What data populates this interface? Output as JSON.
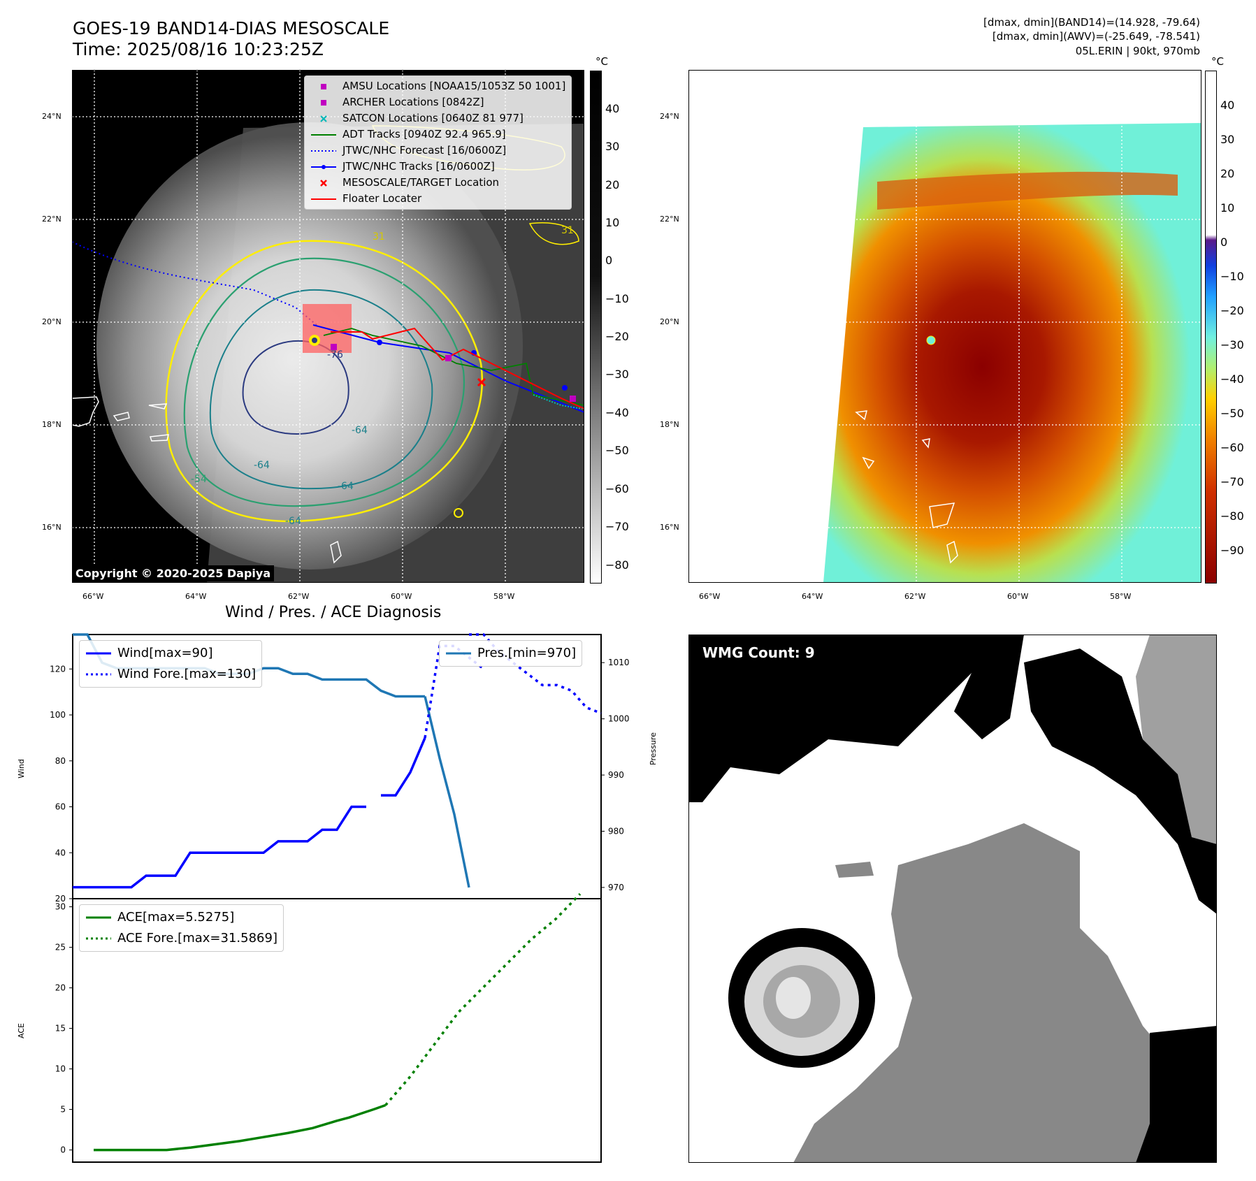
{
  "header": {
    "title_line1": "GOES-19 BAND14-DIAS MESOSCALE",
    "title_line2": "Time: 2025/08/16 10:23:25Z",
    "info_line1": "[dmax, dmin](BAND14)=(14.928, -79.64)",
    "info_line2": "[dmax, dmin](AWV)=(-25.649, -78.541)",
    "info_line3": "05L.ERIN | 90kt, 970mb"
  },
  "ir_panel": {
    "lat_ticks": [
      "24°N",
      "22°N",
      "20°N",
      "18°N",
      "16°N"
    ],
    "lon_ticks": [
      "66°W",
      "64°W",
      "62°W",
      "60°W",
      "58°W"
    ],
    "colorbar_unit": "°C",
    "colorbar_ticks": [
      "40",
      "30",
      "20",
      "10",
      "0",
      "−10",
      "−20",
      "−30",
      "−40",
      "−50",
      "−60",
      "−70",
      "−80"
    ],
    "copyright": "Copyright © 2020-2025 Dapiya",
    "contour_labels": [
      "31",
      "31",
      "-76",
      "-64",
      "-64",
      "-54",
      "-64",
      "-64"
    ],
    "legend": [
      {
        "label": "AMSU Locations [NOAA15/1053Z 50 1001]",
        "color": "#c000c0",
        "marker": "square"
      },
      {
        "label": "ARCHER Locations [0842Z]",
        "color": "#c000c0",
        "marker": "square"
      },
      {
        "label": "SATCON Locations [0640Z 81 977]",
        "color": "#00b8b8",
        "marker": "x"
      },
      {
        "label": "ADT Tracks [0940Z 92.4 965.9]",
        "color": "#008000",
        "marker": "line"
      },
      {
        "label": "JTWC/NHC Forecast [16/0600Z]",
        "color": "#0000ff",
        "marker": "dotted"
      },
      {
        "label": "JTWC/NHC Tracks [16/0600Z]",
        "color": "#0000ff",
        "marker": "line-dot"
      },
      {
        "label": "MESOSCALE/TARGET Location",
        "color": "#ff0000",
        "marker": "x"
      },
      {
        "label": "Floater Locater",
        "color": "#ff0000",
        "marker": "line"
      }
    ]
  },
  "awv_panel": {
    "lat_ticks": [
      "24°N",
      "22°N",
      "20°N",
      "18°N",
      "16°N"
    ],
    "lon_ticks": [
      "66°W",
      "64°W",
      "62°W",
      "60°W",
      "58°W"
    ],
    "colorbar_unit": "°C",
    "colorbar_ticks": [
      "40",
      "30",
      "20",
      "10",
      "0",
      "−10",
      "−20",
      "−30",
      "−40",
      "−50",
      "−60",
      "−70",
      "−80",
      "−90"
    ]
  },
  "diag_panel": {
    "title": "Wind / Pres. / ACE Diagnosis",
    "wind_axis_label": "Wind",
    "pres_axis_label": "Pressure",
    "ace_axis_label": "ACE",
    "wind_ticks": [
      "120",
      "100",
      "80",
      "60",
      "40",
      "20"
    ],
    "pres_ticks": [
      "1010",
      "1000",
      "990",
      "980",
      "970"
    ],
    "ace_ticks": [
      "30",
      "25",
      "20",
      "15",
      "10",
      "5",
      "0"
    ],
    "wind_legend": [
      {
        "label": "Wind[max=90]",
        "color": "#0000ff",
        "style": "solid"
      },
      {
        "label": "Wind Fore.[max=130]",
        "color": "#0000ff",
        "style": "dotted"
      }
    ],
    "pres_legend": [
      {
        "label": "Pres.[min=970]",
        "color": "#1f77b4",
        "style": "solid"
      }
    ],
    "ace_legend": [
      {
        "label": "ACE[max=5.5275]",
        "color": "#008000",
        "style": "solid"
      },
      {
        "label": "ACE Fore.[max=31.5869]",
        "color": "#008000",
        "style": "dotted"
      }
    ]
  },
  "wmg_panel": {
    "badge": "WMG Count: 9"
  },
  "chart_data": [
    {
      "type": "line",
      "title": "Wind / Pres. / ACE Diagnosis",
      "ylabel": "Wind",
      "ylim": [
        20,
        135
      ],
      "series": [
        {
          "name": "Wind[max=90]",
          "x": [
            0,
            1,
            2,
            3,
            4,
            5,
            6,
            7,
            8,
            9,
            10,
            11,
            12,
            13,
            14,
            15,
            16,
            17,
            18,
            19,
            20
          ],
          "values": [
            25,
            25,
            25,
            25,
            25,
            30,
            30,
            30,
            40,
            40,
            40,
            40,
            40,
            40,
            45,
            45,
            45,
            50,
            50,
            60,
            60
          ]
        },
        {
          "name": "Wind[max=90] (end)",
          "x": [
            21,
            22,
            23,
            24
          ],
          "values": [
            65,
            65,
            75,
            90
          ]
        },
        {
          "name": "Wind Fore.[max=130]",
          "x": [
            24,
            25,
            26,
            27,
            28
          ],
          "values": [
            90,
            130,
            130,
            125,
            120
          ]
        }
      ]
    },
    {
      "type": "line",
      "ylabel": "Pressure",
      "ylim": [
        968,
        1015
      ],
      "series": [
        {
          "name": "Pres.[min=970]",
          "x": [
            0,
            1,
            2,
            3,
            4,
            5,
            6,
            7,
            8,
            9,
            10,
            11,
            12,
            13,
            14,
            15,
            16,
            17,
            18,
            19,
            20,
            21,
            22,
            23,
            24
          ],
          "values": [
            1015,
            1015,
            1010,
            1009,
            1009,
            1009,
            1009,
            1009,
            1009,
            1009,
            1008,
            1008,
            1008,
            1009,
            1009,
            1008,
            1008,
            1007,
            1007,
            1007,
            1007,
            1005,
            1004,
            1004,
            1004
          ]
        },
        {
          "name": "Pres.[min=970] (drop)",
          "x": [
            24,
            25,
            26,
            27
          ],
          "values": [
            1004,
            993,
            983,
            970
          ]
        },
        {
          "name": "Pres. forecast",
          "x": [
            27,
            28,
            29,
            30,
            31,
            32,
            33,
            34,
            35,
            36
          ],
          "values": [
            1015,
            1015,
            1012,
            1010,
            1008,
            1006,
            1006,
            1005,
            1002,
            1001
          ]
        }
      ]
    },
    {
      "type": "line",
      "ylabel": "ACE",
      "ylim": [
        -1.5,
        31
      ],
      "series": [
        {
          "name": "ACE[max=5.5275]",
          "x": [
            0,
            2,
            4,
            6,
            8,
            10,
            12,
            14,
            16,
            18,
            20,
            21,
            22,
            23,
            24
          ],
          "values": [
            0,
            0,
            0,
            0,
            0.3,
            0.7,
            1.1,
            1.6,
            2.1,
            2.7,
            3.6,
            4.0,
            4.5,
            5.0,
            5.5275
          ]
        },
        {
          "name": "ACE Fore.[max=31.5869]",
          "x": [
            24,
            26,
            28,
            30,
            32,
            34,
            36,
            38,
            40
          ],
          "values": [
            5.5275,
            9,
            13,
            17,
            20,
            23,
            26,
            28.5,
            31.5869
          ]
        }
      ]
    }
  ]
}
